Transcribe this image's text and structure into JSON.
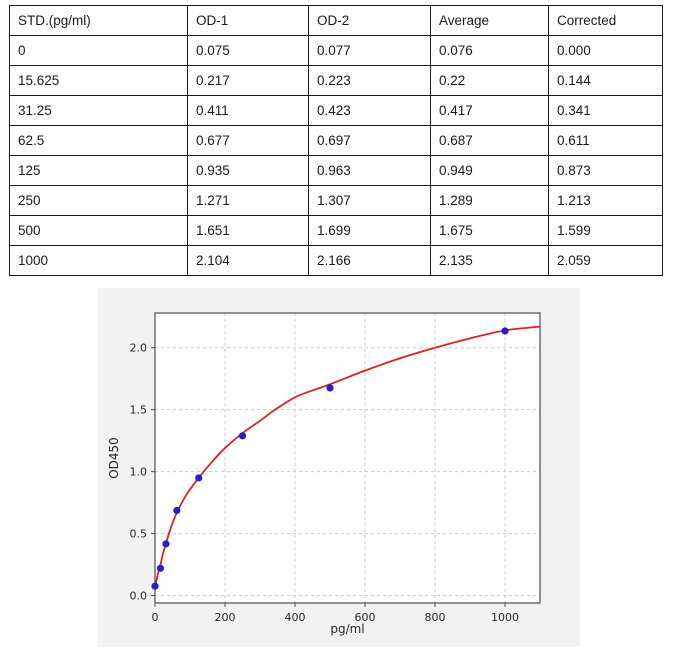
{
  "table": {
    "headers": [
      "STD.(pg/ml)",
      "OD-1",
      "OD-2",
      "Average",
      "Corrected"
    ],
    "rows": [
      [
        "0",
        "0.075",
        "0.077",
        "0.076",
        "0.000"
      ],
      [
        "15.625",
        "0.217",
        "0.223",
        "0.22",
        "0.144"
      ],
      [
        "31.25",
        "0.411",
        "0.423",
        "0.417",
        "0.341"
      ],
      [
        "62.5",
        "0.677",
        "0.697",
        "0.687",
        "0.611"
      ],
      [
        "125",
        "0.935",
        "0.963",
        "0.949",
        "0.873"
      ],
      [
        "250",
        "1.271",
        "1.307",
        "1.289",
        "1.213"
      ],
      [
        "500",
        "1.651",
        "1.699",
        "1.675",
        "1.599"
      ],
      [
        "1000",
        "2.104",
        "2.166",
        "2.135",
        "2.059"
      ]
    ]
  },
  "chart_data": {
    "type": "scatter",
    "title": "",
    "xlabel": "pg/ml",
    "ylabel": "OD450",
    "x": [
      0,
      15.625,
      31.25,
      62.5,
      125,
      250,
      500,
      1000
    ],
    "y": [
      0.076,
      0.22,
      0.417,
      0.687,
      0.949,
      1.289,
      1.675,
      2.135
    ],
    "fit_curve": [
      [
        0,
        0.065
      ],
      [
        8,
        0.17
      ],
      [
        15.625,
        0.25
      ],
      [
        23,
        0.34
      ],
      [
        31.25,
        0.42
      ],
      [
        45,
        0.545
      ],
      [
        62.5,
        0.67
      ],
      [
        90,
        0.815
      ],
      [
        125,
        0.95
      ],
      [
        160,
        1.07
      ],
      [
        200,
        1.19
      ],
      [
        250,
        1.31
      ],
      [
        300,
        1.41
      ],
      [
        343,
        1.5
      ],
      [
        400,
        1.6
      ],
      [
        450,
        1.655
      ],
      [
        500,
        1.705
      ],
      [
        600,
        1.815
      ],
      [
        700,
        1.915
      ],
      [
        800,
        2.0
      ],
      [
        900,
        2.075
      ],
      [
        1000,
        2.14
      ],
      [
        1100,
        2.17
      ]
    ],
    "xlim": [
      0,
      1100
    ],
    "ylim": [
      -0.06,
      2.28
    ],
    "x_ticks": [
      0,
      200,
      400,
      600,
      800,
      1000
    ],
    "y_ticks": [
      0,
      0.5,
      1,
      1.5,
      2
    ],
    "x_tick_labels": [
      "0",
      "200",
      "400",
      "600",
      "800",
      "1000"
    ],
    "y_tick_labels": [
      "0.0",
      "0.5",
      "1.0",
      "1.5",
      "2.0"
    ],
    "grid": true,
    "legend": false,
    "colors": {
      "point": "#2020cc",
      "curve": "#dd2222",
      "grid": "#c9c9c9",
      "spine": "#4d4d4d",
      "figure_bg": "#f2f2f2",
      "plot_bg": "#ffffff"
    }
  }
}
